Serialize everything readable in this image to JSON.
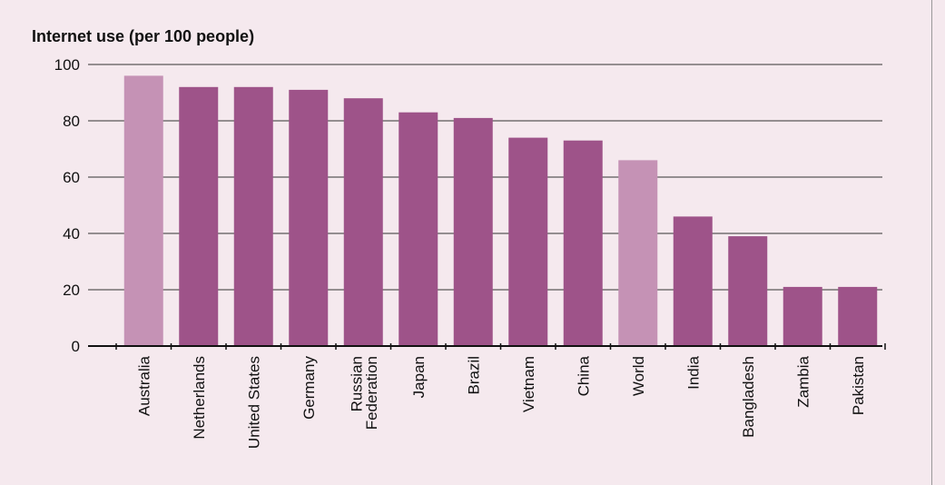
{
  "chart_data": {
    "type": "bar",
    "title": "Internet use (per 100 people)",
    "categories": [
      "Australia",
      "Netherlands",
      "United States",
      "Germany",
      "Russian Federation",
      "Japan",
      "Brazil",
      "Vietnam",
      "China",
      "World",
      "India",
      "Bangladesh",
      "Zambia",
      "Pakistan"
    ],
    "values": [
      96,
      92,
      92,
      91,
      88,
      83,
      81,
      74,
      73,
      66,
      46,
      39,
      21,
      21
    ],
    "colors": [
      "#c592b5",
      "#9e5389",
      "#9e5389",
      "#9e5389",
      "#9e5389",
      "#9e5389",
      "#9e5389",
      "#9e5389",
      "#9e5389",
      "#c592b5",
      "#9e5389",
      "#9e5389",
      "#9e5389",
      "#9e5389"
    ],
    "ylim": [
      0,
      100
    ],
    "yticks": [
      0,
      20,
      40,
      60,
      80,
      100
    ],
    "grid": true
  }
}
